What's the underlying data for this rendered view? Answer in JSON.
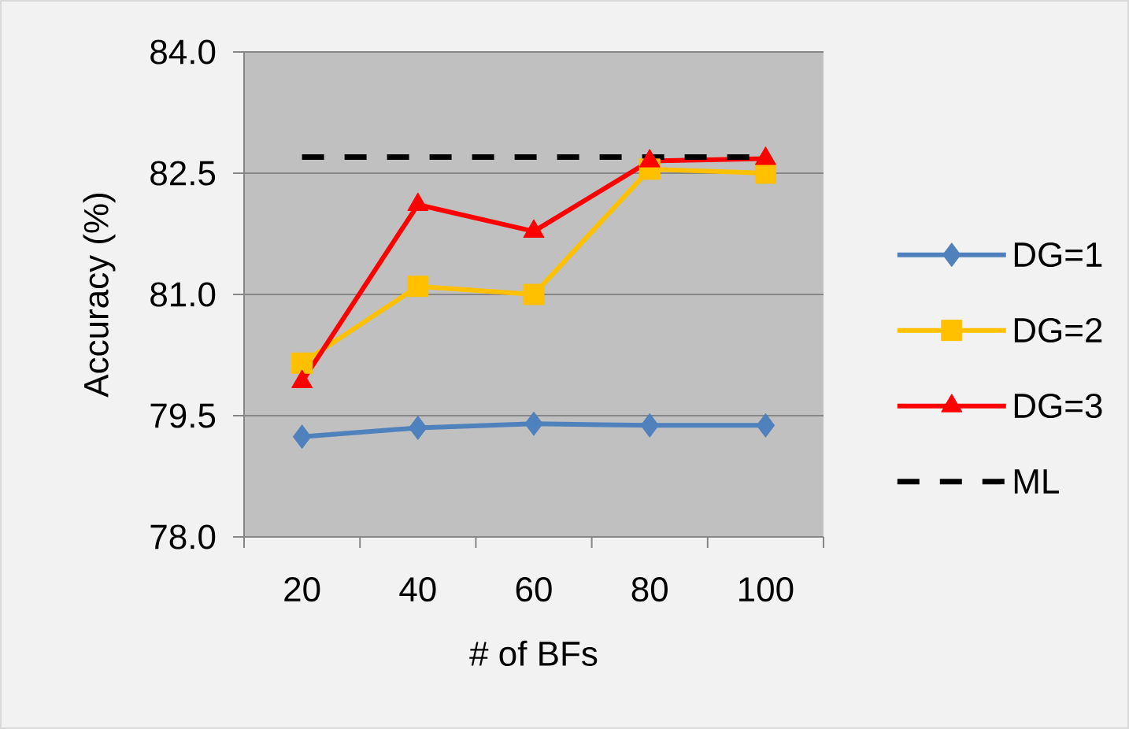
{
  "chart_data": {
    "type": "line",
    "xlabel": "# of BFs",
    "ylabel": "Accuracy (%)",
    "categories": [
      "20",
      "40",
      "60",
      "80",
      "100"
    ],
    "ylim": [
      78,
      84
    ],
    "yticks": [
      {
        "value": 78,
        "label": "78.0"
      },
      79.5,
      {
        "value": 81,
        "label": "81.0"
      },
      82.5,
      {
        "value": 84,
        "label": "84.0"
      }
    ],
    "grid": "y",
    "legend": "right",
    "series": [
      {
        "name": "DG=1",
        "color": "#4f81bd",
        "marker": "diamond",
        "values": [
          79.24,
          79.35,
          79.4,
          79.38,
          79.38
        ]
      },
      {
        "name": "DG=2",
        "color": "#ffc000",
        "marker": "square",
        "values": [
          80.15,
          81.1,
          81.0,
          82.55,
          82.5
        ]
      },
      {
        "name": "DG=3",
        "color": "#ff0000",
        "marker": "triangle",
        "values": [
          79.92,
          82.11,
          81.78,
          82.65,
          82.68
        ]
      },
      {
        "name": "ML",
        "color": "#000000",
        "marker": "none",
        "line_style": "dashed",
        "values": [
          82.7,
          82.7,
          82.7,
          82.7,
          82.7
        ]
      }
    ]
  }
}
